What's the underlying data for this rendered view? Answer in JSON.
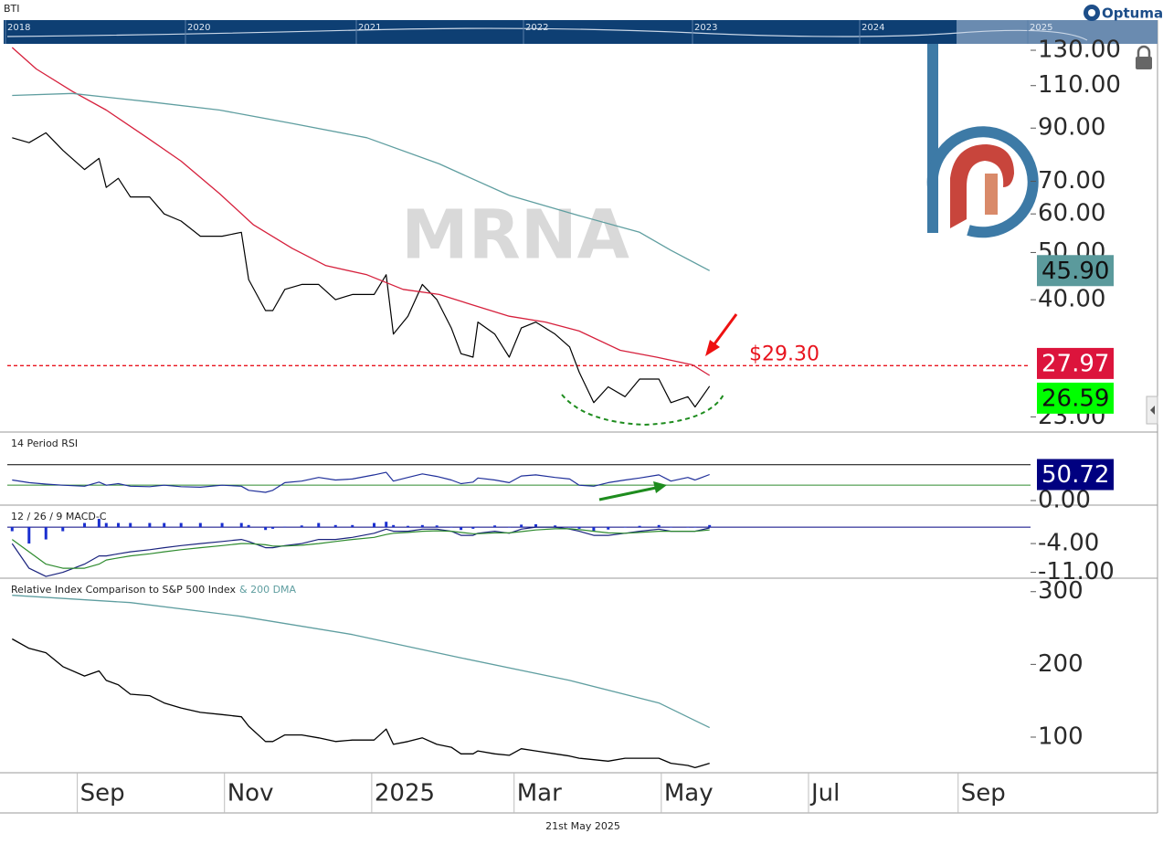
{
  "header": {
    "symbol": "BTI",
    "brand": "Optuma",
    "years": [
      "2018",
      "2020",
      "2021",
      "2022",
      "2023",
      "2024",
      "2025"
    ]
  },
  "chart_data": [
    {
      "type": "line",
      "watermark": "MRNA",
      "log": true,
      "xlim": [
        "2024-08-03",
        "2025-10-01"
      ],
      "ylim": [
        21.5,
        134
      ],
      "yticks": [
        {
          "value": 23,
          "label": "23.00"
        },
        {
          "value": 40,
          "label": "40.00"
        },
        {
          "value": 50,
          "label": "50.00"
        },
        {
          "value": 60,
          "label": "60.00"
        },
        {
          "value": 70,
          "label": "70.00"
        },
        {
          "value": 90,
          "label": "90.00"
        },
        {
          "value": 110,
          "label": "110.00"
        },
        {
          "value": 130,
          "label": "130.00"
        }
      ],
      "hlines": [
        {
          "value": 29.3,
          "label": "$29.30",
          "color": "#e8141e",
          "dashed": true
        }
      ],
      "x": [
        "2024-08-05",
        "2024-08-12",
        "2024-08-19",
        "2024-08-26",
        "2024-09-04",
        "2024-09-10",
        "2024-09-13",
        "2024-09-18",
        "2024-09-23",
        "2024-10-01",
        "2024-10-07",
        "2024-10-14",
        "2024-10-22",
        "2024-10-31",
        "2024-11-08",
        "2024-11-11",
        "2024-11-18",
        "2024-11-21",
        "2024-11-26",
        "2024-12-03",
        "2024-12-10",
        "2024-12-17",
        "2024-12-24",
        "2025-01-02",
        "2025-01-07",
        "2025-01-10",
        "2025-01-16",
        "2025-01-22",
        "2025-01-28",
        "2025-02-03",
        "2025-02-07",
        "2025-02-12",
        "2025-02-14",
        "2025-02-21",
        "2025-02-27",
        "2025-03-04",
        "2025-03-10",
        "2025-03-18",
        "2025-03-24",
        "2025-03-28",
        "2025-04-03",
        "2025-04-09",
        "2025-04-16",
        "2025-04-22",
        "2025-04-30",
        "2025-05-05",
        "2025-05-12",
        "2025-05-15",
        "2025-05-21"
      ],
      "series": [
        {
          "color": "#000000",
          "width": 1.2,
          "last_label": "26.59",
          "label_color": "#00ff00",
          "values": [
            86,
            84,
            88,
            81,
            74,
            78,
            68,
            71,
            65,
            65,
            60,
            58,
            54,
            54,
            55,
            44,
            38,
            38,
            42,
            43,
            43,
            40,
            41,
            41,
            45,
            34,
            37,
            43,
            40,
            35,
            31,
            30.5,
            36,
            34,
            30.5,
            35,
            36,
            34,
            32,
            28.4,
            24.6,
            26.5,
            25.3,
            27.5,
            27.5,
            24.6,
            25.3,
            24.1,
            26.59
          ]
        },
        {
          "color": "#d6203c",
          "width": 1.3,
          "last_label": "27.97",
          "label_color": "#dc143c",
          "x": [
            "2024-08-05",
            "2024-08-15",
            "2024-08-30",
            "2024-09-13",
            "2024-09-30",
            "2024-10-14",
            "2024-10-30",
            "2024-11-13",
            "2024-11-29",
            "2024-12-13",
            "2024-12-30",
            "2025-01-14",
            "2025-01-29",
            "2025-02-12",
            "2025-02-27",
            "2025-03-14",
            "2025-03-28",
            "2025-04-14",
            "2025-04-29",
            "2025-05-14",
            "2025-05-21"
          ],
          "values": [
            131.7,
            119,
            107,
            98,
            86,
            77,
            66,
            57,
            51,
            47,
            45,
            42,
            41,
            39,
            37,
            36,
            34.5,
            31.5,
            30.5,
            29.4,
            27.97
          ]
        },
        {
          "color": "#5f9ea0",
          "width": 1.3,
          "last_label": "45.90",
          "label_color": "#5b9a9c",
          "x": [
            "2024-08-05",
            "2024-08-30",
            "2024-09-30",
            "2024-10-30",
            "2024-11-29",
            "2024-12-30",
            "2025-01-29",
            "2025-02-27",
            "2025-03-28",
            "2025-04-22",
            "2025-05-05",
            "2025-05-21"
          ],
          "values": [
            105,
            106,
            102,
            98,
            92,
            86,
            76,
            65.5,
            59.5,
            55,
            50.5,
            45.9
          ]
        }
      ]
    },
    {
      "type": "line",
      "title": "14 Period RSI",
      "xlim": [
        "2024-08-03",
        "2025-10-01"
      ],
      "ylim": [
        -7.1,
        130
      ],
      "yticks": [
        {
          "value": 0,
          "label": "0.00"
        }
      ],
      "hlines": [
        {
          "value": 70,
          "color": "#000000"
        },
        {
          "value": 30,
          "color": "#2e8b2e"
        }
      ],
      "x": [
        "2024-08-05",
        "2024-08-12",
        "2024-08-19",
        "2024-08-26",
        "2024-09-04",
        "2024-09-10",
        "2024-09-13",
        "2024-09-18",
        "2024-09-23",
        "2024-10-01",
        "2024-10-07",
        "2024-10-14",
        "2024-10-22",
        "2024-10-31",
        "2024-11-08",
        "2024-11-11",
        "2024-11-18",
        "2024-11-21",
        "2024-11-26",
        "2024-12-03",
        "2024-12-10",
        "2024-12-17",
        "2024-12-24",
        "2025-01-02",
        "2025-01-07",
        "2025-01-10",
        "2025-01-16",
        "2025-01-22",
        "2025-01-28",
        "2025-02-03",
        "2025-02-07",
        "2025-02-12",
        "2025-02-14",
        "2025-02-21",
        "2025-02-27",
        "2025-03-04",
        "2025-03-10",
        "2025-03-18",
        "2025-03-24",
        "2025-03-28",
        "2025-04-03",
        "2025-04-09",
        "2025-04-16",
        "2025-04-22",
        "2025-04-30",
        "2025-05-05",
        "2025-05-12",
        "2025-05-15",
        "2025-05-21"
      ],
      "series": [
        {
          "color": "#1f2f9a",
          "width": 1.2,
          "last_label": "50.72",
          "label_color": "#000080",
          "values": [
            40,
            35,
            32,
            30,
            28,
            36,
            30,
            33,
            28,
            27,
            30,
            27,
            26,
            30,
            28,
            20,
            16,
            20,
            35,
            38,
            45,
            40,
            42,
            50,
            55,
            38,
            45,
            52,
            47,
            40,
            33,
            36,
            44,
            40,
            35,
            48,
            50,
            45,
            42,
            30,
            28,
            35,
            40,
            44,
            50,
            38,
            45,
            40,
            50.72
          ]
        }
      ]
    },
    {
      "type": "line",
      "title": "12 / 26 / 9 MACD-C",
      "xlim": [
        "2024-08-03",
        "2025-10-01"
      ],
      "ylim": [
        -12.2,
        4.9
      ],
      "yticks": [
        {
          "value": -4,
          "label": "-4.00"
        },
        {
          "value": -11,
          "label": "-11.00"
        }
      ],
      "hlines": [
        {
          "value": 0,
          "color": "#000080"
        }
      ],
      "x": [
        "2024-08-05",
        "2024-08-12",
        "2024-08-19",
        "2024-08-26",
        "2024-09-04",
        "2024-09-10",
        "2024-09-13",
        "2024-09-18",
        "2024-09-23",
        "2024-10-01",
        "2024-10-07",
        "2024-10-14",
        "2024-10-22",
        "2024-10-31",
        "2024-11-08",
        "2024-11-11",
        "2024-11-18",
        "2024-11-21",
        "2024-11-26",
        "2024-12-03",
        "2024-12-10",
        "2024-12-17",
        "2024-12-24",
        "2025-01-02",
        "2025-01-07",
        "2025-01-10",
        "2025-01-16",
        "2025-01-22",
        "2025-01-28",
        "2025-02-03",
        "2025-02-07",
        "2025-02-12",
        "2025-02-14",
        "2025-02-21",
        "2025-02-27",
        "2025-03-04",
        "2025-03-10",
        "2025-03-18",
        "2025-03-24",
        "2025-03-28",
        "2025-04-03",
        "2025-04-09",
        "2025-04-16",
        "2025-04-22",
        "2025-04-30",
        "2025-05-05",
        "2025-05-12",
        "2025-05-15",
        "2025-05-21"
      ],
      "series": [
        {
          "type": "bar",
          "color": "#1a2fd0",
          "values": [
            -1,
            -4,
            -3,
            -1,
            1,
            2,
            1,
            1,
            1,
            1,
            1,
            1,
            1,
            1,
            1,
            0.5,
            -0.7,
            -0.4,
            0.1,
            0.4,
            1,
            0.5,
            0.5,
            1,
            1.3,
            0.5,
            0.3,
            0.5,
            0.4,
            0,
            -0.7,
            -0.4,
            0.1,
            0.4,
            -0.1,
            0.6,
            0.7,
            0.4,
            -0.1,
            -0.4,
            -1,
            -0.6,
            0,
            0.3,
            0.5,
            0,
            0,
            0,
            0.5
          ]
        },
        {
          "color": "#1a237e",
          "width": 1.2,
          "values": [
            -4,
            -10,
            -12,
            -11,
            -9,
            -7,
            -7,
            -6.5,
            -6,
            -5.5,
            -5,
            -4.5,
            -4,
            -3.5,
            -3,
            -3.5,
            -5,
            -5,
            -4.5,
            -4,
            -3,
            -3,
            -2.5,
            -1.5,
            -0.5,
            -1,
            -1,
            -0.5,
            -0.5,
            -1,
            -2,
            -2,
            -1.5,
            -1,
            -1.5,
            -0.5,
            0,
            0,
            -0.5,
            -1,
            -2,
            -2,
            -1.5,
            -1,
            -0.5,
            -1,
            -1,
            -1,
            -0.2
          ]
        },
        {
          "color": "#2e8b2e",
          "width": 1.2,
          "values": [
            -3,
            -6,
            -9,
            -10,
            -10,
            -9,
            -8,
            -7.5,
            -7,
            -6.5,
            -6,
            -5.5,
            -5,
            -4.5,
            -4,
            -4,
            -4.3,
            -4.6,
            -4.6,
            -4.4,
            -4,
            -3.5,
            -3,
            -2.5,
            -1.8,
            -1.5,
            -1.3,
            -1,
            -0.9,
            -1,
            -1.3,
            -1.6,
            -1.6,
            -1.4,
            -1.4,
            -1.1,
            -0.7,
            -0.4,
            -0.4,
            -0.6,
            -1,
            -1.4,
            -1.5,
            -1.3,
            -1,
            -1,
            -1,
            -1,
            -0.7
          ]
        }
      ]
    },
    {
      "type": "line",
      "xlim": [
        "2024-08-03",
        "2025-10-01"
      ],
      "ylim": [
        51,
        316
      ],
      "yticks": [
        100,
        200,
        300
      ],
      "xticks": [
        {
          "value": "2024-09-01",
          "label": "Sep"
        },
        {
          "value": "2024-11-01",
          "label": "Nov"
        },
        {
          "value": "2025-01-01",
          "label": "2025"
        },
        {
          "value": "2025-03-01",
          "label": "Mar"
        },
        {
          "value": "2025-05-01",
          "label": "May"
        },
        {
          "value": "2025-07-01",
          "label": "Jul"
        },
        {
          "value": "2025-09-01",
          "label": "Sep"
        }
      ],
      "x": [
        "2024-08-05",
        "2024-08-12",
        "2024-08-19",
        "2024-08-26",
        "2024-09-04",
        "2024-09-10",
        "2024-09-13",
        "2024-09-18",
        "2024-09-23",
        "2024-10-01",
        "2024-10-07",
        "2024-10-14",
        "2024-10-22",
        "2024-10-31",
        "2024-11-08",
        "2024-11-11",
        "2024-11-18",
        "2024-11-21",
        "2024-11-26",
        "2024-12-03",
        "2024-12-10",
        "2024-12-17",
        "2024-12-24",
        "2025-01-02",
        "2025-01-07",
        "2025-01-10",
        "2025-01-16",
        "2025-01-22",
        "2025-01-28",
        "2025-02-03",
        "2025-02-07",
        "2025-02-12",
        "2025-02-14",
        "2025-02-21",
        "2025-02-27",
        "2025-03-04",
        "2025-03-10",
        "2025-03-18",
        "2025-03-24",
        "2025-03-28",
        "2025-04-03",
        "2025-04-09",
        "2025-04-16",
        "2025-04-22",
        "2025-04-30",
        "2025-05-05",
        "2025-05-12",
        "2025-05-15",
        "2025-05-21"
      ],
      "series": [
        {
          "name": "Relative Index Comparison to S&P 500 Index",
          "color": "#000000",
          "width": 1.3,
          "values": [
            235,
            222,
            216,
            197,
            184,
            191,
            178,
            172,
            159,
            157,
            147,
            140,
            134,
            131,
            128,
            115,
            94,
            94,
            103,
            103,
            99,
            94,
            96,
            96,
            111,
            90,
            94,
            99,
            90,
            86,
            77,
            77,
            81,
            77,
            75,
            84,
            81,
            77,
            74,
            71,
            69,
            67,
            71,
            71,
            71,
            64,
            61,
            58,
            64
          ]
        },
        {
          "name": "& 200 DMA",
          "color": "#5f9ea0",
          "width": 1.3,
          "x": [
            "2024-08-05",
            "2024-09-23",
            "2024-11-08",
            "2024-12-24",
            "2025-02-07",
            "2025-03-24",
            "2025-04-30",
            "2025-05-21"
          ],
          "values": [
            295,
            285,
            266,
            241,
            209,
            178,
            147,
            113
          ]
        }
      ]
    }
  ],
  "footer": {
    "date": "21st May 2025"
  }
}
